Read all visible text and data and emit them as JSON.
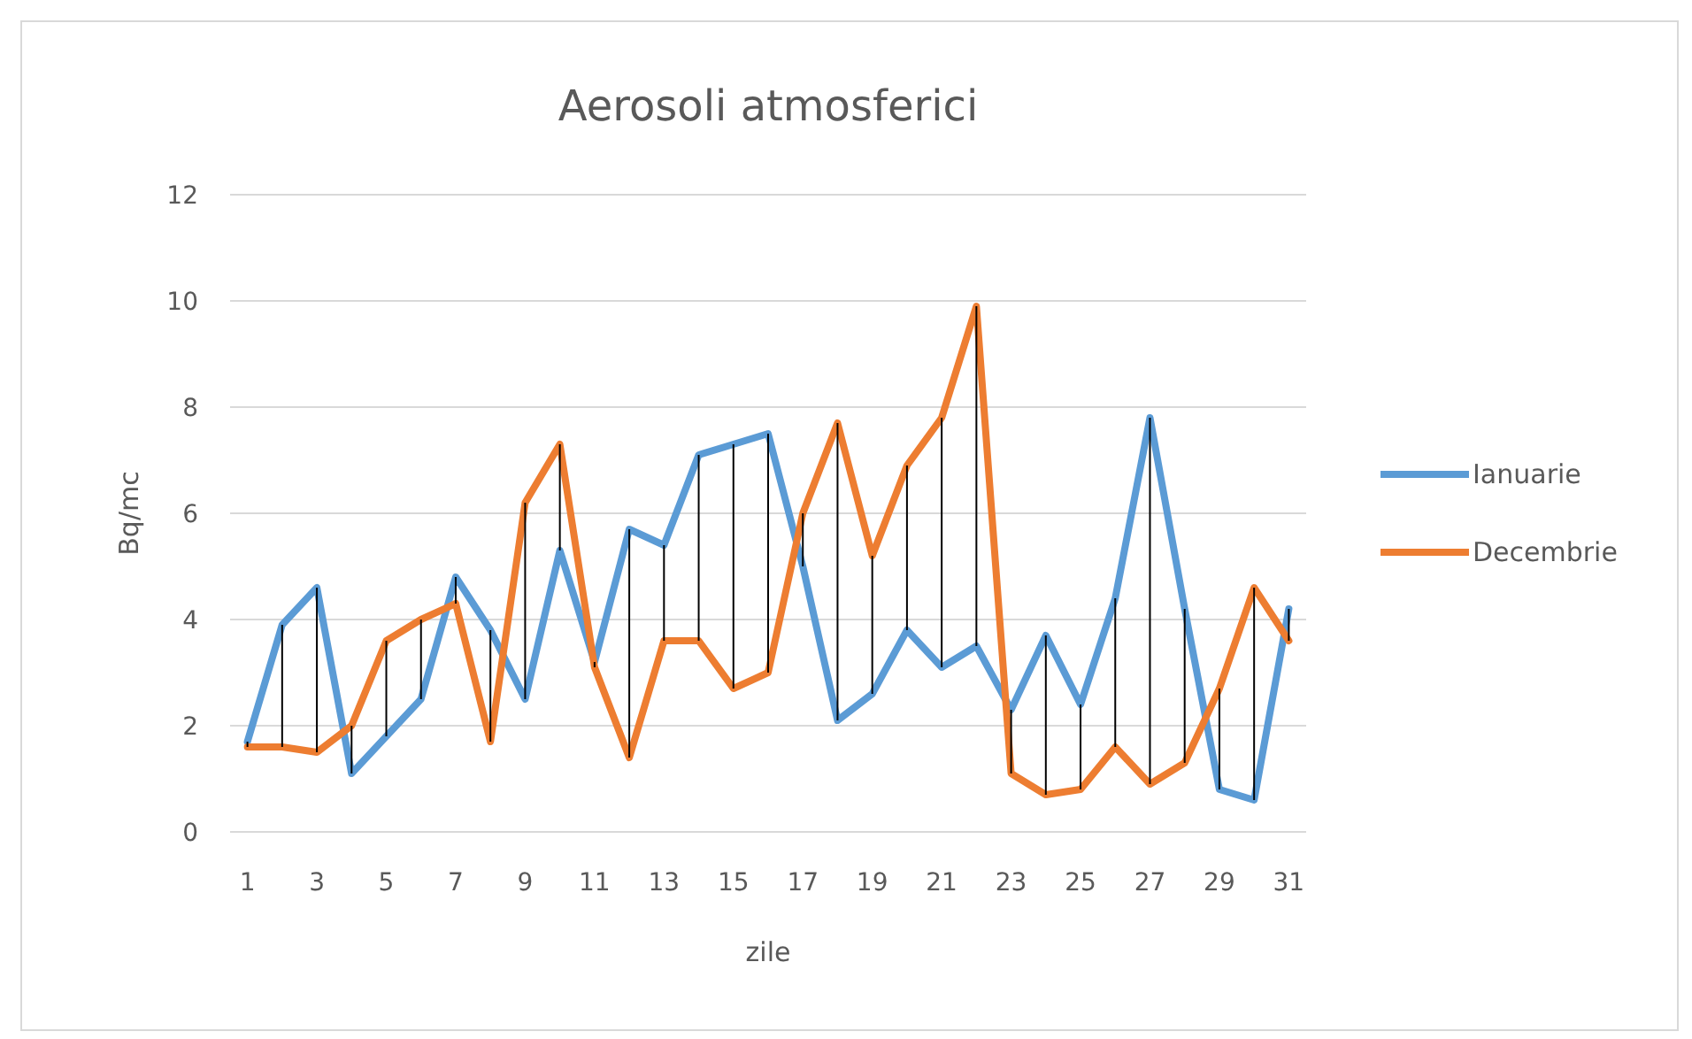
{
  "chart_data": {
    "type": "line",
    "title": "Aerosoli atmosferici",
    "xlabel": "zile",
    "ylabel": "Bq/mc",
    "x": [
      1,
      2,
      3,
      4,
      5,
      6,
      7,
      8,
      9,
      10,
      11,
      12,
      13,
      14,
      15,
      16,
      17,
      18,
      19,
      20,
      21,
      22,
      23,
      24,
      25,
      26,
      27,
      28,
      29,
      30,
      31
    ],
    "xlim": [
      0.5,
      31.5
    ],
    "xticks": [
      1,
      3,
      5,
      7,
      9,
      11,
      13,
      15,
      17,
      19,
      21,
      23,
      25,
      27,
      29,
      31
    ],
    "series": [
      {
        "name": "Ianuarie",
        "color": "#5b9bd5",
        "values": [
          1.7,
          3.9,
          4.6,
          1.1,
          1.8,
          2.5,
          4.8,
          3.8,
          2.5,
          5.3,
          3.2,
          5.7,
          5.4,
          7.1,
          7.3,
          7.5,
          5.0,
          2.1,
          2.6,
          3.8,
          3.1,
          3.5,
          2.3,
          3.7,
          2.4,
          4.4,
          7.8,
          4.2,
          0.8,
          0.6,
          4.2
        ]
      },
      {
        "name": "Decembrie",
        "color": "#ed7d31",
        "values": [
          1.6,
          1.6,
          1.5,
          2.0,
          3.6,
          4.0,
          4.3,
          1.7,
          6.2,
          7.3,
          3.1,
          1.4,
          3.6,
          3.6,
          2.7,
          3.0,
          6.0,
          7.7,
          5.2,
          6.9,
          7.8,
          9.9,
          1.1,
          0.7,
          0.8,
          1.6,
          0.9,
          1.3,
          2.7,
          4.6,
          3.6
        ],
        "errors": [
          [
            1.6,
            1.7
          ],
          [
            1.6,
            3.9
          ],
          [
            1.5,
            4.6
          ],
          [
            1.1,
            2.0
          ],
          [
            1.8,
            3.6
          ],
          [
            2.5,
            4.0
          ],
          [
            4.3,
            4.8
          ],
          [
            1.7,
            3.8
          ],
          [
            2.5,
            6.2
          ],
          [
            5.3,
            7.3
          ],
          [
            3.1,
            3.2
          ],
          [
            1.4,
            5.7
          ],
          [
            3.6,
            5.4
          ],
          [
            3.6,
            7.1
          ],
          [
            2.7,
            7.3
          ],
          [
            3.0,
            7.5
          ],
          [
            5.0,
            6.0
          ],
          [
            2.1,
            7.7
          ],
          [
            2.6,
            5.2
          ],
          [
            3.8,
            6.9
          ],
          [
            3.1,
            7.8
          ],
          [
            3.5,
            9.9
          ],
          [
            1.1,
            2.3
          ],
          [
            0.7,
            3.7
          ],
          [
            0.8,
            2.4
          ],
          [
            1.6,
            4.4
          ],
          [
            0.9,
            7.8
          ],
          [
            1.3,
            4.2
          ],
          [
            0.8,
            2.7
          ],
          [
            0.6,
            4.6
          ],
          [
            3.6,
            4.2
          ]
        ]
      }
    ],
    "ylim": [
      0,
      12
    ],
    "yticks": [
      0,
      2,
      4,
      6,
      8,
      10,
      12
    ],
    "grid": "y",
    "legend": "right",
    "marker": "none",
    "line_style": "solid"
  }
}
